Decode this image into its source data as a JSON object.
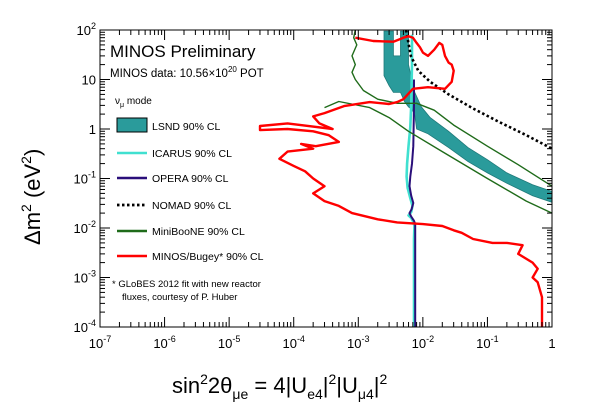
{
  "chart_data": {
    "type": "line",
    "title": "MINOS Preliminary",
    "subtitle": "MINOS data: 10.56×10^20 POT",
    "subtitle_main": "MINOS data: 10.56×10",
    "subtitle_exp": "20",
    "subtitle_tail": " POT",
    "mode_label_base": "ν",
    "mode_label_sub": "μ",
    "mode_label_tail": " mode",
    "xlabel": "sin²2θ_μe = 4|U_e4|²|U_μ4|²",
    "ylabel": "Δm² (eV²)",
    "xscale": "log",
    "yscale": "log",
    "xlim": [
      1e-07,
      1
    ],
    "ylim": [
      0.0001,
      100
    ],
    "x_ticks": [
      {
        "value": 1e-07,
        "base": "10",
        "exp": "-7"
      },
      {
        "value": 1e-06,
        "base": "10",
        "exp": "-6"
      },
      {
        "value": 1e-05,
        "base": "10",
        "exp": "-5"
      },
      {
        "value": 0.0001,
        "base": "10",
        "exp": "-4"
      },
      {
        "value": 0.001,
        "base": "10",
        "exp": "-3"
      },
      {
        "value": 0.01,
        "base": "10",
        "exp": "-2"
      },
      {
        "value": 0.1,
        "base": "10",
        "exp": "-1"
      },
      {
        "value": 1,
        "base": "1",
        "exp": ""
      }
    ],
    "y_ticks": [
      {
        "value": 0.0001,
        "base": "10",
        "exp": "-4"
      },
      {
        "value": 0.001,
        "base": "10",
        "exp": "-3"
      },
      {
        "value": 0.01,
        "base": "10",
        "exp": "-2"
      },
      {
        "value": 0.1,
        "base": "10",
        "exp": "-1"
      },
      {
        "value": 1,
        "base": "1",
        "exp": ""
      },
      {
        "value": 10,
        "base": "10",
        "exp": ""
      },
      {
        "value": 100,
        "base": "10",
        "exp": "2"
      }
    ],
    "legend": [
      {
        "label": "LSND 90% CL",
        "color": "#2a9b9b",
        "style": "band"
      },
      {
        "label": "ICARUS 90% CL",
        "color": "#40e0d0",
        "style": "solid"
      },
      {
        "label": "OPERA 90% CL",
        "color": "#2a0f7a",
        "style": "solid"
      },
      {
        "label": "NOMAD 90% CL",
        "color": "#000000",
        "style": "dotted"
      },
      {
        "label": "MiniBooNE 90% CL",
        "color": "#1f6b1a",
        "style": "solid"
      },
      {
        "label": "MINOS/Bugey* 90% CL",
        "color": "#ff0000",
        "style": "solid"
      }
    ],
    "footnote": [
      "* GLoBES 2012 fit with new reactor",
      "fluxes, courtesy of P. Huber"
    ],
    "series": [
      {
        "name": "LSND 90% CL",
        "color": "#2a9b9b",
        "kind": "band",
        "upper": [
          [
            0.0025,
            95
          ],
          [
            0.0035,
            95
          ],
          [
            0.0035,
            30
          ],
          [
            0.0045,
            30
          ],
          [
            0.0045,
            95
          ],
          [
            0.006,
            95
          ],
          [
            0.006,
            20
          ],
          [
            0.0075,
            5.5
          ],
          [
            0.0095,
            2.8
          ],
          [
            0.013,
            1.7
          ],
          [
            0.025,
            0.9
          ],
          [
            0.05,
            0.42
          ],
          [
            0.1,
            0.24
          ],
          [
            0.2,
            0.13
          ],
          [
            0.5,
            0.075
          ],
          [
            1,
            0.055
          ]
        ],
        "lower": [
          [
            1,
            0.033
          ],
          [
            0.5,
            0.045
          ],
          [
            0.2,
            0.08
          ],
          [
            0.1,
            0.13
          ],
          [
            0.05,
            0.22
          ],
          [
            0.025,
            0.42
          ],
          [
            0.012,
            0.8
          ],
          [
            0.008,
            1.0
          ],
          [
            0.0075,
            1.9
          ],
          [
            0.0068,
            2.5
          ],
          [
            0.006,
            2.8
          ],
          [
            0.0052,
            3.6
          ],
          [
            0.0045,
            5.5
          ],
          [
            0.0035,
            5.5
          ],
          [
            0.003,
            7.5
          ],
          [
            0.0025,
            12
          ]
        ]
      },
      {
        "name": "ICARUS 90% CL",
        "color": "#40e0d0",
        "kind": "line",
        "points": [
          [
            0.0068,
            80
          ],
          [
            0.0068,
            20
          ],
          [
            0.0067,
            8
          ],
          [
            0.0066,
            3
          ],
          [
            0.0064,
            1.1
          ],
          [
            0.006,
            0.45
          ],
          [
            0.0057,
            0.2
          ],
          [
            0.0056,
            0.11
          ],
          [
            0.0058,
            0.065
          ],
          [
            0.0064,
            0.04
          ],
          [
            0.0069,
            0.028
          ],
          [
            0.0066,
            0.021
          ],
          [
            0.006,
            0.018
          ],
          [
            0.0066,
            0.016
          ],
          [
            0.0072,
            0.013
          ],
          [
            0.0074,
            0.011
          ],
          [
            0.0073,
            0.006
          ],
          [
            0.0073,
            0.0001
          ]
        ]
      },
      {
        "name": "OPERA 90% CL",
        "color": "#2a0f7a",
        "kind": "line",
        "points": [
          [
            0.0073,
            10
          ],
          [
            0.0073,
            3
          ],
          [
            0.0072,
            1
          ],
          [
            0.0071,
            0.45
          ],
          [
            0.0068,
            0.2
          ],
          [
            0.0064,
            0.11
          ],
          [
            0.0062,
            0.07
          ],
          [
            0.0066,
            0.045
          ],
          [
            0.0071,
            0.032
          ],
          [
            0.0067,
            0.024
          ],
          [
            0.0062,
            0.02
          ],
          [
            0.0066,
            0.017
          ],
          [
            0.0073,
            0.014
          ],
          [
            0.0076,
            0.012
          ],
          [
            0.0076,
            0.006
          ],
          [
            0.0076,
            0.0001
          ]
        ]
      },
      {
        "name": "NOMAD 90% CL",
        "color": "#000000",
        "kind": "dotted",
        "points": [
          [
            0.0055,
            100
          ],
          [
            0.0065,
            30
          ],
          [
            0.0085,
            15
          ],
          [
            0.013,
            9
          ],
          [
            0.025,
            5
          ],
          [
            0.06,
            2.6
          ],
          [
            0.15,
            1.4
          ],
          [
            0.4,
            0.75
          ],
          [
            1,
            0.4
          ]
        ]
      },
      {
        "name": "MiniBooNE 90% CL",
        "color": "#1f6b1a",
        "kind": "line",
        "points": [
          [
            0.0009,
            100
          ],
          [
            0.00085,
            70
          ],
          [
            0.00095,
            50
          ],
          [
            0.0008,
            30
          ],
          [
            0.0009,
            20
          ],
          [
            0.0008,
            14
          ],
          [
            0.0009,
            10
          ],
          [
            0.0012,
            6
          ],
          [
            0.002,
            4
          ],
          [
            0.004,
            3.3
          ],
          [
            0.008,
            3.3
          ],
          [
            0.015,
            2.4
          ],
          [
            0.03,
            1.2
          ],
          [
            0.1,
            0.45
          ],
          [
            0.3,
            0.19
          ],
          [
            1,
            0.07
          ]
        ]
      },
      {
        "name": "MiniBooNE 90% CL (inner)",
        "color": "#1f6b1a",
        "kind": "line",
        "points": [
          [
            0.0003,
            2.7
          ],
          [
            0.0005,
            3.6
          ],
          [
            0.0015,
            2.7
          ],
          [
            0.003,
            1.7
          ],
          [
            0.006,
            0.9
          ],
          [
            0.02,
            0.35
          ],
          [
            0.1,
            0.1
          ],
          [
            0.4,
            0.035
          ],
          [
            1,
            0.02
          ]
        ]
      },
      {
        "name": "MINOS/Bugey* 90% CL",
        "color": "#ff0000",
        "kind": "line",
        "points": [
          [
            0.0009,
            70
          ],
          [
            0.0017,
            60
          ],
          [
            0.0035,
            58
          ],
          [
            0.005,
            70
          ],
          [
            0.006,
            75
          ],
          [
            0.007,
            70
          ],
          [
            0.008,
            55
          ],
          [
            0.009,
            45
          ],
          [
            0.01,
            35
          ],
          [
            0.012,
            30
          ],
          [
            0.015,
            40
          ],
          [
            0.018,
            55
          ],
          [
            0.02,
            50
          ],
          [
            0.022,
            30
          ],
          [
            0.025,
            22
          ],
          [
            0.028,
            20
          ],
          [
            0.03,
            15
          ],
          [
            0.028,
            9
          ],
          [
            0.022,
            6.5
          ],
          [
            0.012,
            7
          ],
          [
            0.007,
            6.5
          ],
          [
            0.005,
            4
          ],
          [
            0.004,
            3.5
          ],
          [
            0.003,
            3.2
          ],
          [
            0.0015,
            3.5
          ],
          [
            0.0006,
            2.9
          ],
          [
            0.0003,
            2.1
          ],
          [
            0.0002,
            1.8
          ],
          [
            0.00025,
            1.3
          ],
          [
            0.0004,
            1.0
          ],
          [
            8e-05,
            1.3
          ],
          [
            3e-05,
            1.15
          ],
          [
            3e-05,
            0.95
          ],
          [
            8e-05,
            1.0
          ],
          [
            0.0002,
            0.9
          ],
          [
            0.00035,
            0.75
          ],
          [
            0.0005,
            0.55
          ],
          [
            0.00022,
            0.45
          ],
          [
            0.00013,
            0.5
          ],
          [
            0.0002,
            0.4
          ],
          [
            8e-05,
            0.35
          ],
          [
            6e-05,
            0.25
          ],
          [
            0.0001,
            0.18
          ],
          [
            0.00015,
            0.14
          ],
          [
            0.0002,
            0.1
          ],
          [
            0.0003,
            0.07
          ],
          [
            0.0002,
            0.05
          ],
          [
            0.0003,
            0.035
          ],
          [
            0.0005,
            0.028
          ],
          [
            0.0008,
            0.02
          ],
          [
            0.002,
            0.015
          ],
          [
            0.004,
            0.013
          ],
          [
            0.01,
            0.012
          ],
          [
            0.02,
            0.011
          ],
          [
            0.03,
            0.009
          ],
          [
            0.04,
            0.008
          ],
          [
            0.06,
            0.006
          ],
          [
            0.12,
            0.005
          ],
          [
            0.2,
            0.005
          ],
          [
            0.35,
            0.0045
          ],
          [
            0.3,
            0.003
          ],
          [
            0.5,
            0.002
          ],
          [
            0.6,
            0.0015
          ],
          [
            0.5,
            0.001
          ],
          [
            0.6,
            0.0008
          ],
          [
            0.7,
            0.0004
          ],
          [
            0.7,
            0.0001
          ]
        ]
      }
    ]
  }
}
